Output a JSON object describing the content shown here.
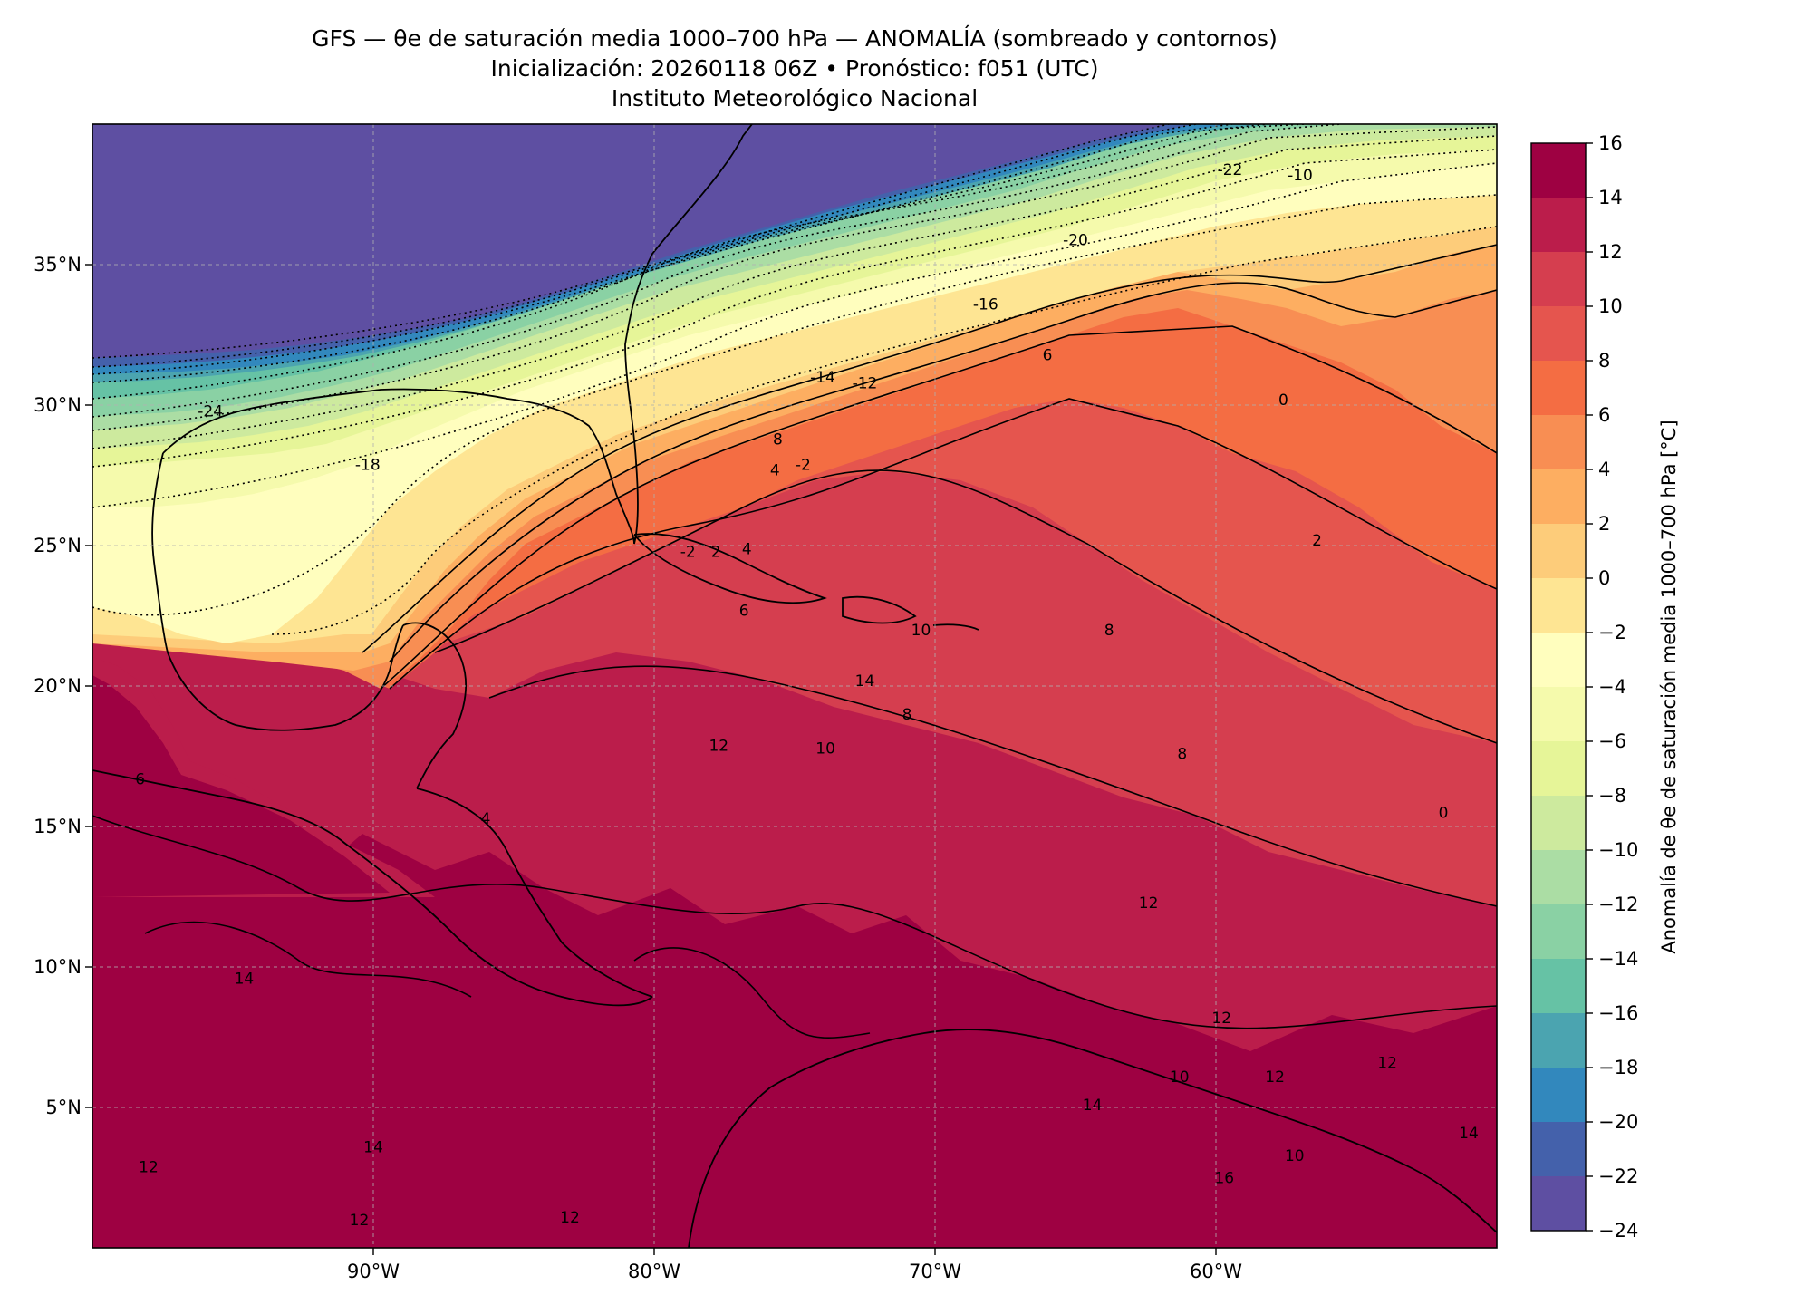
{
  "title": {
    "line1": "GFS — θe de saturación media 1000–700 hPa — ANOMALÍA (sombreado y contornos)",
    "line2": "Inicialización: 20260118 06Z   •   Pronóstico: f051 (UTC)",
    "line3": "Instituto Meteorológico Nacional"
  },
  "map": {
    "type": "filled-contour",
    "extent": {
      "lon": [
        -100,
        -50
      ],
      "lat": [
        0,
        40
      ]
    },
    "lat_ticks": [
      {
        "value": 35,
        "label": "35°N"
      },
      {
        "value": 30,
        "label": "30°N"
      },
      {
        "value": 25,
        "label": "25°N"
      },
      {
        "value": 20,
        "label": "20°N"
      },
      {
        "value": 15,
        "label": "15°N"
      },
      {
        "value": 10,
        "label": "10°N"
      },
      {
        "value": 5,
        "label": "5°N"
      }
    ],
    "lon_ticks": [
      {
        "value": -90,
        "label": "90°W"
      },
      {
        "value": -80,
        "label": "80°W"
      },
      {
        "value": -70,
        "label": "70°W"
      },
      {
        "value": -60,
        "label": "60°W"
      }
    ],
    "gridlines": true,
    "contour_labels": [
      {
        "text": "-22",
        "lon": -59.5,
        "lat": 38.2
      },
      {
        "text": "-10",
        "lon": -57.0,
        "lat": 38.0
      },
      {
        "text": "-20",
        "lon": -65.0,
        "lat": 35.7
      },
      {
        "text": "-16",
        "lon": -68.2,
        "lat": 33.4
      },
      {
        "text": "6",
        "lon": -66.0,
        "lat": 31.6
      },
      {
        "text": "-14",
        "lon": -74.0,
        "lat": 30.8
      },
      {
        "text": "-12",
        "lon": -72.5,
        "lat": 30.6
      },
      {
        "text": "-24",
        "lon": -95.8,
        "lat": 29.6
      },
      {
        "text": "8",
        "lon": -75.6,
        "lat": 28.6
      },
      {
        "text": "4",
        "lon": -75.7,
        "lat": 27.5
      },
      {
        "text": "-2",
        "lon": -74.7,
        "lat": 27.7
      },
      {
        "text": "-18",
        "lon": -90.2,
        "lat": 27.7
      },
      {
        "text": "-2",
        "lon": -78.8,
        "lat": 24.6
      },
      {
        "text": "2",
        "lon": -77.8,
        "lat": 24.6
      },
      {
        "text": "4",
        "lon": -76.7,
        "lat": 24.7
      },
      {
        "text": "6",
        "lon": -76.8,
        "lat": 22.5
      },
      {
        "text": "10",
        "lon": -70.5,
        "lat": 21.8
      },
      {
        "text": "8",
        "lon": -63.8,
        "lat": 21.8
      },
      {
        "text": "2",
        "lon": -56.4,
        "lat": 25.0
      },
      {
        "text": "0",
        "lon": -57.6,
        "lat": 30.0
      },
      {
        "text": "14",
        "lon": -72.5,
        "lat": 20.0
      },
      {
        "text": "8",
        "lon": -71.0,
        "lat": 18.8
      },
      {
        "text": "12",
        "lon": -77.7,
        "lat": 17.7
      },
      {
        "text": "10",
        "lon": -73.9,
        "lat": 17.6
      },
      {
        "text": "8",
        "lon": -61.2,
        "lat": 17.4
      },
      {
        "text": "0",
        "lon": -51.9,
        "lat": 15.3
      },
      {
        "text": "4",
        "lon": -86.0,
        "lat": 15.1
      },
      {
        "text": "6",
        "lon": -98.3,
        "lat": 16.5
      },
      {
        "text": "14",
        "lon": -94.6,
        "lat": 9.4
      },
      {
        "text": "12",
        "lon": -62.4,
        "lat": 12.1
      },
      {
        "text": "12",
        "lon": -59.8,
        "lat": 8.0
      },
      {
        "text": "12",
        "lon": -53.9,
        "lat": 6.4
      },
      {
        "text": "12",
        "lon": -57.9,
        "lat": 5.9
      },
      {
        "text": "10",
        "lon": -61.3,
        "lat": 5.9
      },
      {
        "text": "14",
        "lon": -64.4,
        "lat": 4.9
      },
      {
        "text": "14",
        "lon": -90.0,
        "lat": 3.4
      },
      {
        "text": "10",
        "lon": -57.2,
        "lat": 3.1
      },
      {
        "text": "12",
        "lon": -98.0,
        "lat": 2.7
      },
      {
        "text": "16",
        "lon": -59.7,
        "lat": 2.3
      },
      {
        "text": "14",
        "lon": -51.0,
        "lat": 3.9
      },
      {
        "text": "12",
        "lon": -90.5,
        "lat": 0.8
      },
      {
        "text": "12",
        "lon": -83.0,
        "lat": 0.9
      }
    ]
  },
  "colorbar": {
    "label": "Anomalía de θe de saturación media 1000–700 hPa [°C]",
    "levels": [
      -24,
      -22,
      -20,
      -18,
      -16,
      -14,
      -12,
      -10,
      -8,
      -6,
      -4,
      -2,
      0,
      2,
      4,
      6,
      8,
      10,
      12,
      14,
      16
    ],
    "tick_labels": [
      "−24",
      "−22",
      "−20",
      "−18",
      "−16",
      "−14",
      "−12",
      "−10",
      "−8",
      "−6",
      "−4",
      "−2",
      "0",
      "2",
      "4",
      "6",
      "8",
      "10",
      "12",
      "14",
      "16"
    ],
    "colors": [
      "#5e4fa2",
      "#4461ab",
      "#3288bd",
      "#4ba4b0",
      "#66c2a5",
      "#8ad1a4",
      "#abdda4",
      "#cdea9e",
      "#e6f598",
      "#f5faac",
      "#fffebe",
      "#fee593",
      "#fdcc7a",
      "#fdae61",
      "#f88e53",
      "#f46d43",
      "#e5554e",
      "#d53e4f",
      "#bb1d4b",
      "#9e0142"
    ]
  }
}
